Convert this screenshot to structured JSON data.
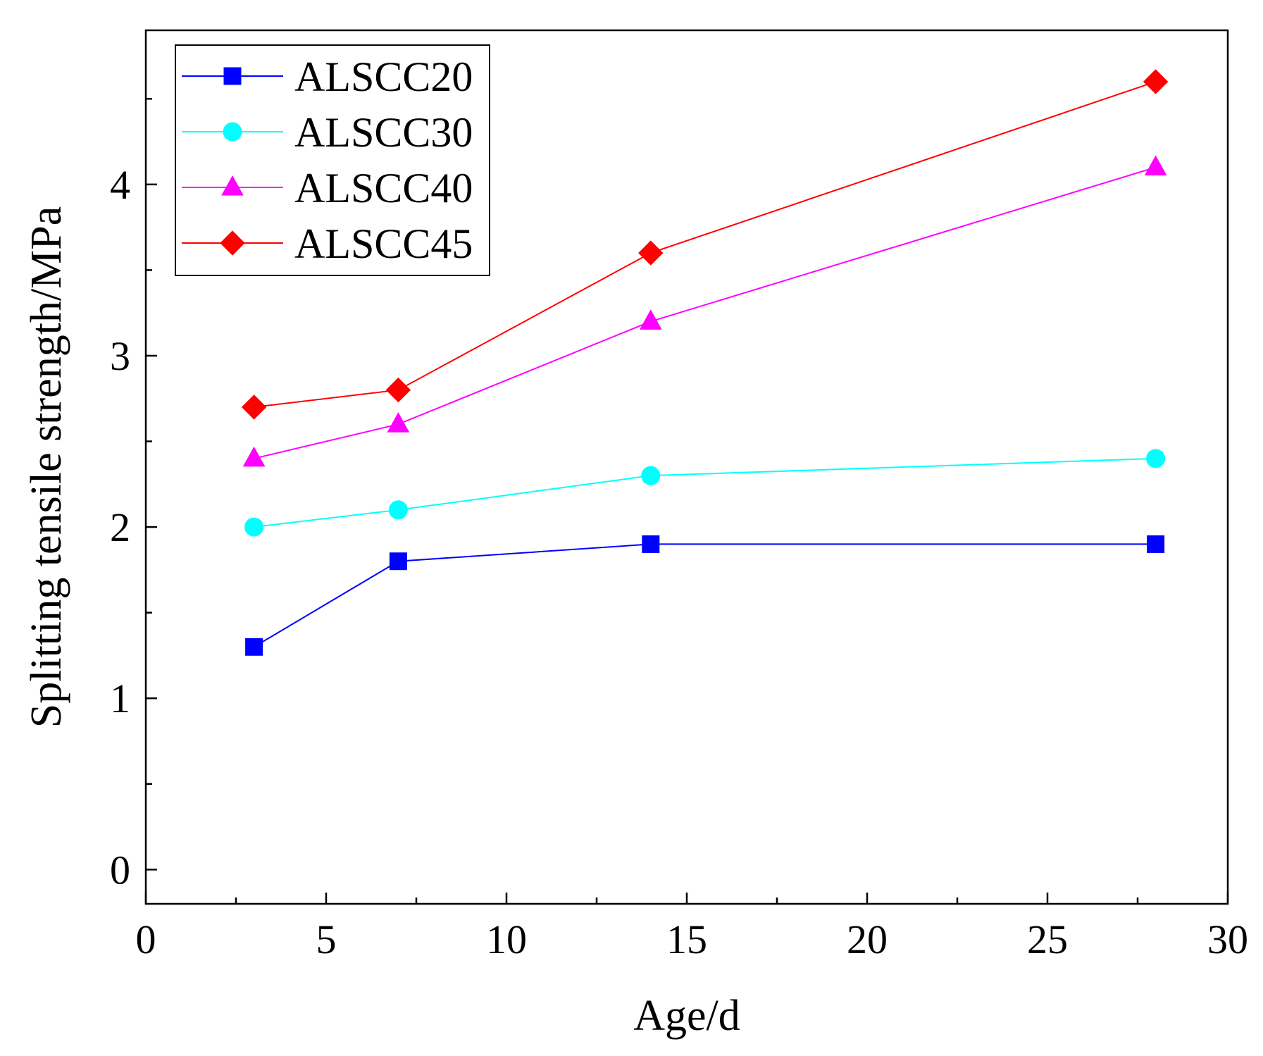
{
  "chart_data": {
    "type": "line",
    "title": "",
    "xlabel": "Age/d",
    "ylabel": "Splitting tensile strength/MPa",
    "xlim": [
      0,
      30
    ],
    "ylim": [
      -0.2,
      4.9
    ],
    "xticks": [
      0,
      5,
      10,
      15,
      20,
      25,
      30
    ],
    "yticks": [
      0,
      1,
      2,
      3,
      4
    ],
    "x": [
      3,
      7,
      14,
      28
    ],
    "legend_position": "top-left",
    "grid": false,
    "series": [
      {
        "name": "ALSCC20",
        "values": [
          1.3,
          1.8,
          1.9,
          1.9
        ],
        "color": "#0000FF",
        "marker": "square"
      },
      {
        "name": "ALSCC30",
        "values": [
          2.0,
          2.1,
          2.3,
          2.4
        ],
        "color": "#00FFFF",
        "marker": "circle"
      },
      {
        "name": "ALSCC40",
        "values": [
          2.4,
          2.6,
          3.2,
          4.1
        ],
        "color": "#FF00FF",
        "marker": "triangle"
      },
      {
        "name": "ALSCC45",
        "values": [
          2.7,
          2.8,
          3.6,
          4.6
        ],
        "color": "#FF0000",
        "marker": "diamond"
      }
    ]
  }
}
